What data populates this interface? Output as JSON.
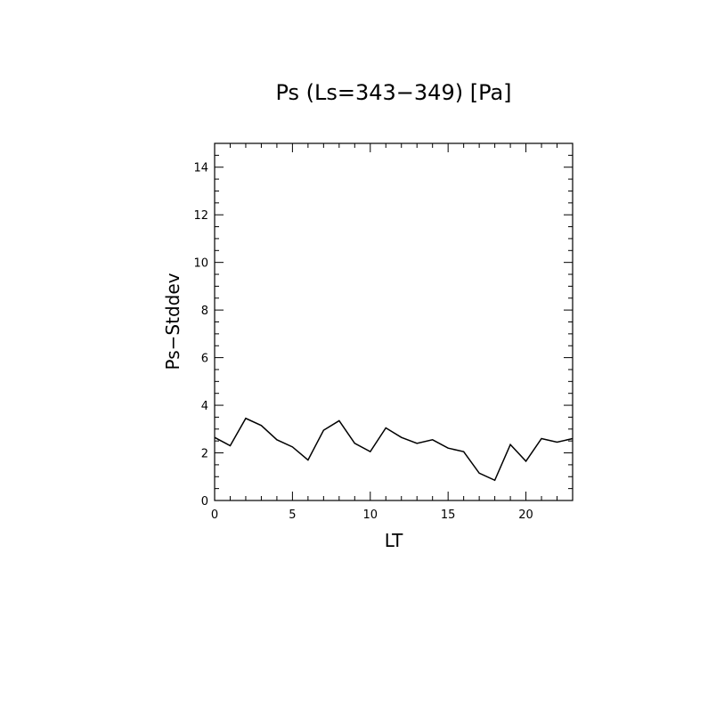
{
  "chart_data": {
    "type": "line",
    "title": "Ps (Ls=343−349) [Pa]",
    "xlabel": "LT",
    "ylabel": "Ps−Stddev",
    "xlim": [
      0,
      23
    ],
    "ylim": [
      0,
      15
    ],
    "x_ticks": [
      0,
      5,
      10,
      15,
      20
    ],
    "y_ticks": [
      0,
      2,
      4,
      6,
      8,
      10,
      12,
      14
    ],
    "grid": false,
    "legend": "none",
    "line_color": "#000000",
    "series": [
      {
        "x": [
          0,
          1,
          2,
          3,
          4,
          5,
          6,
          7,
          8,
          9,
          10,
          11,
          12,
          13,
          14,
          15,
          16,
          17,
          18,
          19,
          20,
          21,
          22,
          23
        ],
        "values": [
          2.65,
          2.3,
          3.45,
          3.15,
          2.55,
          2.25,
          1.7,
          2.95,
          3.35,
          2.4,
          2.05,
          3.05,
          2.65,
          2.4,
          2.55,
          2.2,
          2.05,
          1.15,
          0.85,
          2.35,
          1.65,
          2.6,
          2.45,
          2.6
        ]
      }
    ]
  }
}
